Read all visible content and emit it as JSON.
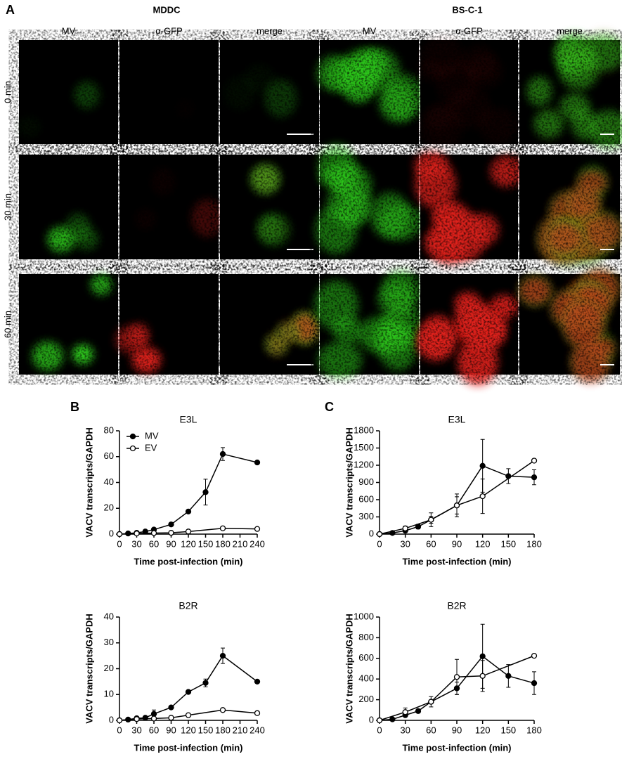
{
  "panel_a": {
    "label": "A",
    "groups": [
      "MDDC",
      "BS-C-1"
    ],
    "columns": [
      "MV",
      "α-GFP",
      "merge",
      "MV",
      "α-GFP",
      "merge"
    ],
    "rows": [
      "0 min",
      "30 min",
      "60 min"
    ]
  },
  "chart_data": [
    {
      "type": "line",
      "panel": "B",
      "title": "E3L",
      "ylabel": "VACV transcripts/GAPDH",
      "xlabel": "Time post-infection (min)",
      "xlim": [
        0,
        240
      ],
      "xticks": [
        0,
        30,
        60,
        90,
        120,
        150,
        180,
        210,
        240
      ],
      "ylim": [
        0,
        80
      ],
      "yticks": [
        0,
        20,
        40,
        60,
        80
      ],
      "legend": "upper left",
      "series": [
        {
          "name": "MV",
          "color": "#000000",
          "filled": true,
          "x": [
            0,
            15,
            30,
            45,
            60,
            90,
            120,
            150,
            180,
            240
          ],
          "values": [
            0,
            0.5,
            1,
            2,
            3.5,
            7.5,
            17.5,
            32.5,
            62,
            55.5
          ],
          "errors": [
            null,
            null,
            null,
            null,
            null,
            null,
            null,
            10,
            5,
            null
          ]
        },
        {
          "name": "EV",
          "color": "#000000",
          "filled": false,
          "x": [
            0,
            30,
            60,
            90,
            120,
            180,
            240
          ],
          "values": [
            0,
            0.5,
            0.8,
            1,
            2,
            4.5,
            4
          ],
          "errors": [
            null,
            null,
            null,
            null,
            null,
            null,
            null
          ]
        }
      ]
    },
    {
      "type": "line",
      "panel": "C",
      "title": "E3L",
      "ylabel": "VACV transcripts/GAPDH",
      "xlabel": "Time post-infection (min)",
      "xlim": [
        0,
        180
      ],
      "xticks": [
        0,
        30,
        60,
        90,
        120,
        150,
        180
      ],
      "ylim": [
        0,
        1800
      ],
      "yticks": [
        0,
        300,
        600,
        900,
        1200,
        1500,
        1800
      ],
      "series": [
        {
          "color": "#000000",
          "filled": true,
          "x": [
            0,
            15,
            30,
            45,
            60,
            90,
            120,
            150,
            180
          ],
          "values": [
            0,
            20,
            60,
            130,
            250,
            500,
            1190,
            1010,
            990
          ],
          "errors": [
            null,
            null,
            30,
            40,
            60,
            150,
            460,
            130,
            130
          ]
        },
        {
          "color": "#000000",
          "filled": false,
          "x": [
            0,
            30,
            60,
            90,
            120,
            180
          ],
          "values": [
            0,
            100,
            250,
            500,
            660,
            1280
          ],
          "errors": [
            null,
            40,
            120,
            200,
            300,
            null
          ]
        }
      ]
    },
    {
      "type": "line",
      "title": "B2R",
      "ylabel": "VACV transcripts/GAPDH",
      "xlabel": "Time post-infection (min)",
      "xlim": [
        0,
        240
      ],
      "xticks": [
        0,
        30,
        60,
        90,
        120,
        150,
        180,
        210,
        240
      ],
      "ylim": [
        0,
        40
      ],
      "yticks": [
        0,
        10,
        20,
        30,
        40
      ],
      "series": [
        {
          "color": "#000000",
          "filled": true,
          "x": [
            0,
            15,
            30,
            45,
            60,
            90,
            120,
            150,
            180,
            240
          ],
          "values": [
            0,
            0.3,
            0.8,
            1,
            2.5,
            5,
            11,
            14.5,
            25,
            15
          ],
          "errors": [
            null,
            null,
            null,
            null,
            1.5,
            null,
            null,
            1.5,
            3,
            null
          ]
        },
        {
          "color": "#000000",
          "filled": false,
          "x": [
            0,
            30,
            60,
            90,
            120,
            180,
            240
          ],
          "values": [
            0,
            0.5,
            0.7,
            1,
            2,
            4,
            2.8
          ],
          "errors": [
            null,
            null,
            null,
            null,
            null,
            null,
            null
          ]
        }
      ]
    },
    {
      "type": "line",
      "title": "B2R",
      "ylabel": "VACV transcripts/GAPDH",
      "xlabel": "Time post-infection (min)",
      "xlim": [
        0,
        180
      ],
      "xticks": [
        0,
        30,
        60,
        90,
        120,
        150,
        180
      ],
      "ylim": [
        0,
        1000
      ],
      "yticks": [
        0,
        200,
        400,
        600,
        800,
        1000
      ],
      "series": [
        {
          "color": "#000000",
          "filled": true,
          "x": [
            0,
            15,
            30,
            45,
            60,
            90,
            120,
            150,
            180
          ],
          "values": [
            0,
            10,
            50,
            90,
            180,
            310,
            620,
            430,
            360
          ],
          "errors": [
            null,
            null,
            null,
            null,
            null,
            60,
            310,
            110,
            110
          ]
        },
        {
          "color": "#000000",
          "filled": false,
          "x": [
            0,
            30,
            60,
            90,
            120,
            180
          ],
          "values": [
            0,
            80,
            180,
            420,
            430,
            625
          ],
          "errors": [
            null,
            40,
            50,
            170,
            150,
            null
          ]
        }
      ]
    }
  ]
}
